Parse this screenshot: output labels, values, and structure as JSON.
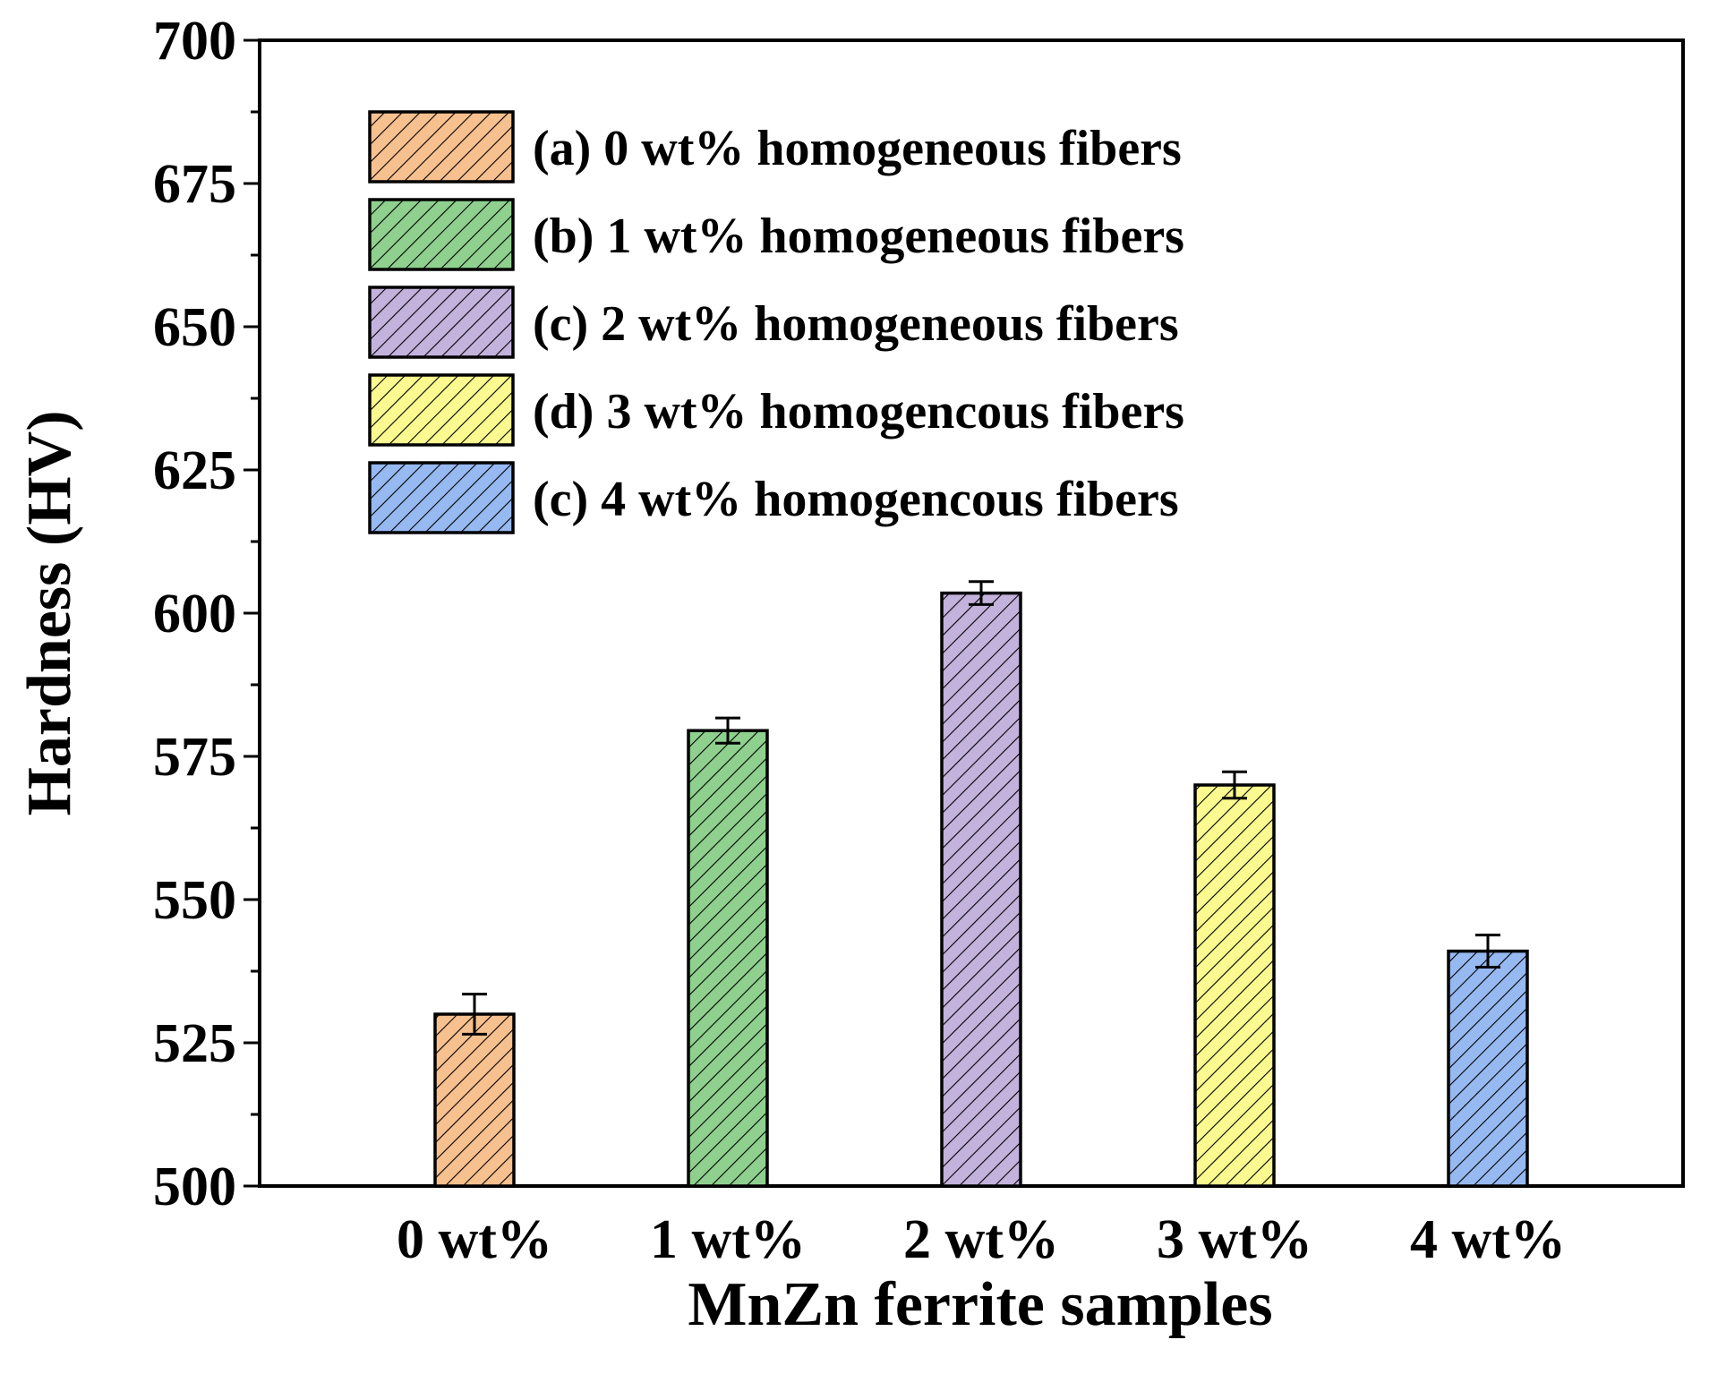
{
  "chart_data": {
    "type": "bar",
    "title": "",
    "xlabel": "MnZn ferrite samples",
    "ylabel": "Hardness (HV)",
    "ylim": [
      500,
      700
    ],
    "yticks": [
      500,
      525,
      550,
      575,
      600,
      625,
      650,
      675,
      700
    ],
    "ytick_labels": [
      "500",
      "525",
      "550",
      "575",
      "600",
      "625",
      "650",
      "675",
      "700"
    ],
    "categories": [
      "0 wt%",
      "1 wt%",
      "2 wt%",
      "3 wt%",
      "4 wt%"
    ],
    "values": [
      530,
      579.5,
      603.5,
      570,
      541
    ],
    "errors": [
      3.5,
      2.2,
      2.0,
      2.3,
      2.8
    ],
    "colors": [
      "#f7c08f",
      "#8fd08f",
      "#c3b2dc",
      "#fafa91",
      "#97b9f1"
    ],
    "legend_position": "top-left",
    "legend": [
      {
        "label": "(a) 0 wt% homogeneous fibers",
        "color": "#f7c08f"
      },
      {
        "label": "(b) 1 wt% homogeneous fibers",
        "color": "#8fd08f"
      },
      {
        "label": "(c) 2 wt% homogeneous fibers",
        "color": "#c3b2dc"
      },
      {
        "label": "(d) 3 wt% homogencous fibers",
        "color": "#fafa91"
      },
      {
        "label": "(c) 4 wt% homogencous fibers",
        "color": "#97b9f1"
      }
    ],
    "grid": false
  }
}
